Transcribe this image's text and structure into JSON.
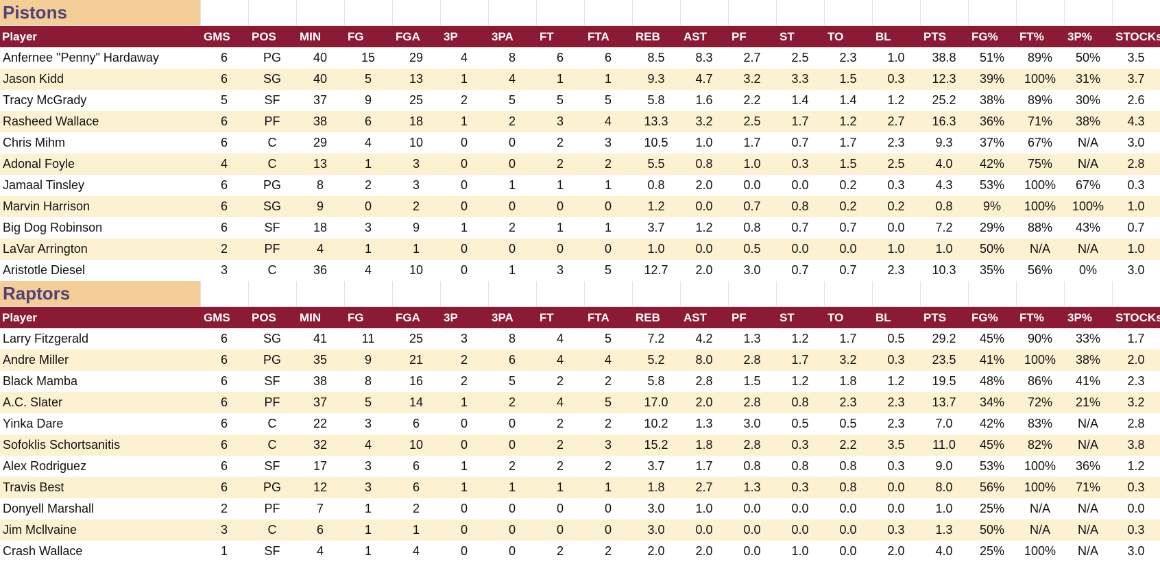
{
  "columns": [
    "Player",
    "GMS",
    "POS",
    "MIN",
    "FG",
    "FGA",
    "3P",
    "3PA",
    "FT",
    "FTA",
    "REB",
    "AST",
    "PF",
    "ST",
    "TO",
    "BL",
    "PTS",
    "FG%",
    "FT%",
    "3P%",
    "STOCKs"
  ],
  "colors": {
    "header_bg": "#8b1a34",
    "team_bg": "#f5cd98",
    "team_text": "#4e4378",
    "stripe": "#fcf1d1"
  },
  "teams": [
    {
      "name": "Pistons",
      "rows": [
        [
          "Anfernee \"Penny\" Hardaway",
          "6",
          "PG",
          "40",
          "15",
          "29",
          "4",
          "8",
          "6",
          "6",
          "8.5",
          "8.3",
          "2.7",
          "2.5",
          "2.3",
          "1.0",
          "38.8",
          "51%",
          "89%",
          "50%",
          "3.5"
        ],
        [
          "Jason Kidd",
          "6",
          "SG",
          "40",
          "5",
          "13",
          "1",
          "4",
          "1",
          "1",
          "9.3",
          "4.7",
          "3.2",
          "3.3",
          "1.5",
          "0.3",
          "12.3",
          "39%",
          "100%",
          "31%",
          "3.7"
        ],
        [
          "Tracy McGrady",
          "5",
          "SF",
          "37",
          "9",
          "25",
          "2",
          "5",
          "5",
          "5",
          "5.8",
          "1.6",
          "2.2",
          "1.4",
          "1.4",
          "1.2",
          "25.2",
          "38%",
          "89%",
          "30%",
          "2.6"
        ],
        [
          "Rasheed Wallace",
          "6",
          "PF",
          "38",
          "6",
          "18",
          "1",
          "2",
          "3",
          "4",
          "13.3",
          "3.2",
          "2.5",
          "1.7",
          "1.2",
          "2.7",
          "16.3",
          "36%",
          "71%",
          "38%",
          "4.3"
        ],
        [
          "Chris Mihm",
          "6",
          "C",
          "29",
          "4",
          "10",
          "0",
          "0",
          "2",
          "3",
          "10.5",
          "1.0",
          "1.7",
          "0.7",
          "1.7",
          "2.3",
          "9.3",
          "37%",
          "67%",
          "N/A",
          "3.0"
        ],
        [
          "Adonal Foyle",
          "4",
          "C",
          "13",
          "1",
          "3",
          "0",
          "0",
          "2",
          "2",
          "5.5",
          "0.8",
          "1.0",
          "0.3",
          "1.5",
          "2.5",
          "4.0",
          "42%",
          "75%",
          "N/A",
          "2.8"
        ],
        [
          "Jamaal Tinsley",
          "6",
          "PG",
          "8",
          "2",
          "3",
          "0",
          "1",
          "1",
          "1",
          "0.8",
          "2.0",
          "0.0",
          "0.0",
          "0.2",
          "0.3",
          "4.3",
          "53%",
          "100%",
          "67%",
          "0.3"
        ],
        [
          "Marvin Harrison",
          "6",
          "SG",
          "9",
          "0",
          "2",
          "0",
          "0",
          "0",
          "0",
          "1.2",
          "0.0",
          "0.7",
          "0.8",
          "0.2",
          "0.2",
          "0.8",
          "9%",
          "100%",
          "100%",
          "1.0"
        ],
        [
          "Big Dog Robinson",
          "6",
          "SF",
          "18",
          "3",
          "9",
          "1",
          "2",
          "1",
          "1",
          "3.7",
          "1.2",
          "0.8",
          "0.7",
          "0.7",
          "0.0",
          "7.2",
          "29%",
          "88%",
          "43%",
          "0.7"
        ],
        [
          "LaVar Arrington",
          "2",
          "PF",
          "4",
          "1",
          "1",
          "0",
          "0",
          "0",
          "0",
          "1.0",
          "0.0",
          "0.5",
          "0.0",
          "0.0",
          "1.0",
          "1.0",
          "50%",
          "N/A",
          "N/A",
          "1.0"
        ],
        [
          "Aristotle Diesel",
          "3",
          "C",
          "36",
          "4",
          "10",
          "0",
          "1",
          "3",
          "5",
          "12.7",
          "2.0",
          "3.0",
          "0.7",
          "0.7",
          "2.3",
          "10.3",
          "35%",
          "56%",
          "0%",
          "3.0"
        ]
      ]
    },
    {
      "name": "Raptors",
      "rows": [
        [
          "Larry Fitzgerald",
          "6",
          "SG",
          "41",
          "11",
          "25",
          "3",
          "8",
          "4",
          "5",
          "7.2",
          "4.2",
          "1.3",
          "1.2",
          "1.7",
          "0.5",
          "29.2",
          "45%",
          "90%",
          "33%",
          "1.7"
        ],
        [
          "Andre Miller",
          "6",
          "PG",
          "35",
          "9",
          "21",
          "2",
          "6",
          "4",
          "4",
          "5.2",
          "8.0",
          "2.8",
          "1.7",
          "3.2",
          "0.3",
          "23.5",
          "41%",
          "100%",
          "38%",
          "2.0"
        ],
        [
          "Black Mamba",
          "6",
          "SF",
          "38",
          "8",
          "16",
          "2",
          "5",
          "2",
          "2",
          "5.8",
          "2.8",
          "1.5",
          "1.2",
          "1.8",
          "1.2",
          "19.5",
          "48%",
          "86%",
          "41%",
          "2.3"
        ],
        [
          "A.C. Slater",
          "6",
          "PF",
          "37",
          "5",
          "14",
          "1",
          "2",
          "4",
          "5",
          "17.0",
          "2.0",
          "2.8",
          "0.8",
          "2.3",
          "2.3",
          "13.7",
          "34%",
          "72%",
          "21%",
          "3.2"
        ],
        [
          "Yinka Dare",
          "6",
          "C",
          "22",
          "3",
          "6",
          "0",
          "0",
          "2",
          "2",
          "10.2",
          "1.3",
          "3.0",
          "0.5",
          "0.5",
          "2.3",
          "7.0",
          "42%",
          "83%",
          "N/A",
          "2.8"
        ],
        [
          "Sofoklis Schortsanitis",
          "6",
          "C",
          "32",
          "4",
          "10",
          "0",
          "0",
          "2",
          "3",
          "15.2",
          "1.8",
          "2.8",
          "0.3",
          "2.2",
          "3.5",
          "11.0",
          "45%",
          "82%",
          "N/A",
          "3.8"
        ],
        [
          "Alex Rodriguez",
          "6",
          "SF",
          "17",
          "3",
          "6",
          "1",
          "2",
          "2",
          "2",
          "3.7",
          "1.7",
          "0.8",
          "0.8",
          "0.8",
          "0.3",
          "9.0",
          "53%",
          "100%",
          "36%",
          "1.2"
        ],
        [
          "Travis Best",
          "6",
          "PG",
          "12",
          "3",
          "6",
          "1",
          "1",
          "1",
          "1",
          "1.8",
          "2.7",
          "1.3",
          "0.3",
          "0.8",
          "0.0",
          "8.0",
          "56%",
          "100%",
          "71%",
          "0.3"
        ],
        [
          "Donyell Marshall",
          "2",
          "PF",
          "7",
          "1",
          "2",
          "0",
          "0",
          "0",
          "0",
          "3.0",
          "1.0",
          "0.0",
          "0.0",
          "0.0",
          "0.0",
          "1.0",
          "25%",
          "N/A",
          "N/A",
          "0.0"
        ],
        [
          "Jim Mcllvaine",
          "3",
          "C",
          "6",
          "1",
          "1",
          "0",
          "0",
          "0",
          "0",
          "3.0",
          "0.0",
          "0.0",
          "0.0",
          "0.0",
          "0.3",
          "1.3",
          "50%",
          "N/A",
          "N/A",
          "0.3"
        ],
        [
          "Crash Wallace",
          "1",
          "SF",
          "4",
          "1",
          "4",
          "0",
          "0",
          "2",
          "2",
          "2.0",
          "2.0",
          "0.0",
          "1.0",
          "0.0",
          "2.0",
          "4.0",
          "25%",
          "100%",
          "N/A",
          "3.0"
        ]
      ]
    }
  ]
}
